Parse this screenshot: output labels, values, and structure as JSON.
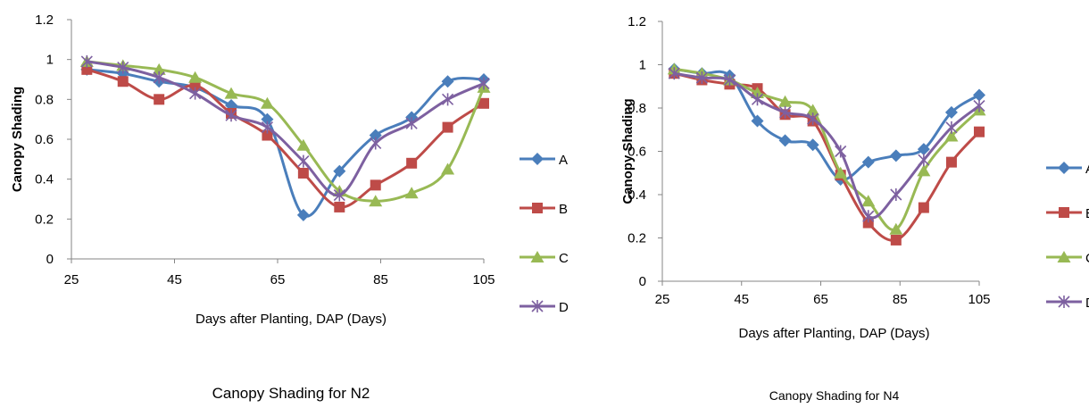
{
  "chart_data": [
    {
      "type": "line",
      "title": "Canopy Shading for N2",
      "xlabel": "Days after Planting, DAP (Days)",
      "ylabel": "Canopy Shading",
      "xlim": [
        25,
        105
      ],
      "ylim": [
        0,
        1.2
      ],
      "xticks": [
        "25",
        "45",
        "65",
        "85",
        "105"
      ],
      "yticks": [
        "0",
        "0.2",
        "0.4",
        "0.6",
        "0.8",
        "1",
        "1.2"
      ],
      "grid": false,
      "legend": "right",
      "x": [
        28,
        35,
        42,
        49,
        56,
        63,
        70,
        77,
        84,
        91,
        98,
        105
      ],
      "series": [
        {
          "name": "A",
          "values": [
            0.95,
            0.93,
            0.89,
            0.86,
            0.77,
            0.7,
            0.22,
            0.44,
            0.62,
            0.71,
            0.89,
            0.9
          ]
        },
        {
          "name": "B",
          "values": [
            0.95,
            0.89,
            0.8,
            0.87,
            0.73,
            0.62,
            0.43,
            0.26,
            0.37,
            0.48,
            0.66,
            0.78
          ]
        },
        {
          "name": "C",
          "values": [
            0.99,
            0.97,
            0.95,
            0.91,
            0.83,
            0.78,
            0.57,
            0.34,
            0.29,
            0.33,
            0.45,
            0.86
          ]
        },
        {
          "name": "D",
          "values": [
            0.99,
            0.96,
            0.91,
            0.83,
            0.72,
            0.66,
            0.49,
            0.32,
            0.58,
            0.68,
            0.8,
            0.88
          ]
        }
      ]
    },
    {
      "type": "line",
      "title": "Canopy Shading for N4",
      "xlabel": "Days after Planting, DAP (Days)",
      "ylabel": "Canopy Shading",
      "xlim": [
        25,
        105
      ],
      "ylim": [
        0,
        1.2
      ],
      "xticks": [
        "25",
        "45",
        "65",
        "85",
        "105"
      ],
      "yticks": [
        "0",
        "0.2",
        "0.4",
        "0.6",
        "0.8",
        "1",
        "1.2"
      ],
      "grid": false,
      "legend": "right",
      "x": [
        28,
        35,
        42,
        49,
        56,
        63,
        70,
        77,
        84,
        91,
        98,
        105
      ],
      "series": [
        {
          "name": "A",
          "values": [
            0.98,
            0.96,
            0.95,
            0.74,
            0.65,
            0.63,
            0.47,
            0.55,
            0.58,
            0.61,
            0.78,
            0.86
          ]
        },
        {
          "name": "B",
          "values": [
            0.96,
            0.93,
            0.91,
            0.89,
            0.77,
            0.74,
            0.49,
            0.27,
            0.19,
            0.34,
            0.55,
            0.69
          ]
        },
        {
          "name": "C",
          "values": [
            0.98,
            0.96,
            0.93,
            0.87,
            0.83,
            0.79,
            0.5,
            0.37,
            0.24,
            0.51,
            0.67,
            0.79
          ]
        },
        {
          "name": "D",
          "values": [
            0.96,
            0.94,
            0.93,
            0.84,
            0.78,
            0.75,
            0.6,
            0.3,
            0.4,
            0.56,
            0.71,
            0.81
          ]
        }
      ]
    }
  ],
  "colors": {
    "A": "#4a7ebb",
    "B": "#be4b48",
    "C": "#98b954",
    "D": "#7d60a0",
    "axis": "#868686"
  },
  "markers": {
    "A": "diamond",
    "B": "square",
    "C": "triangle",
    "D": "x-star"
  }
}
